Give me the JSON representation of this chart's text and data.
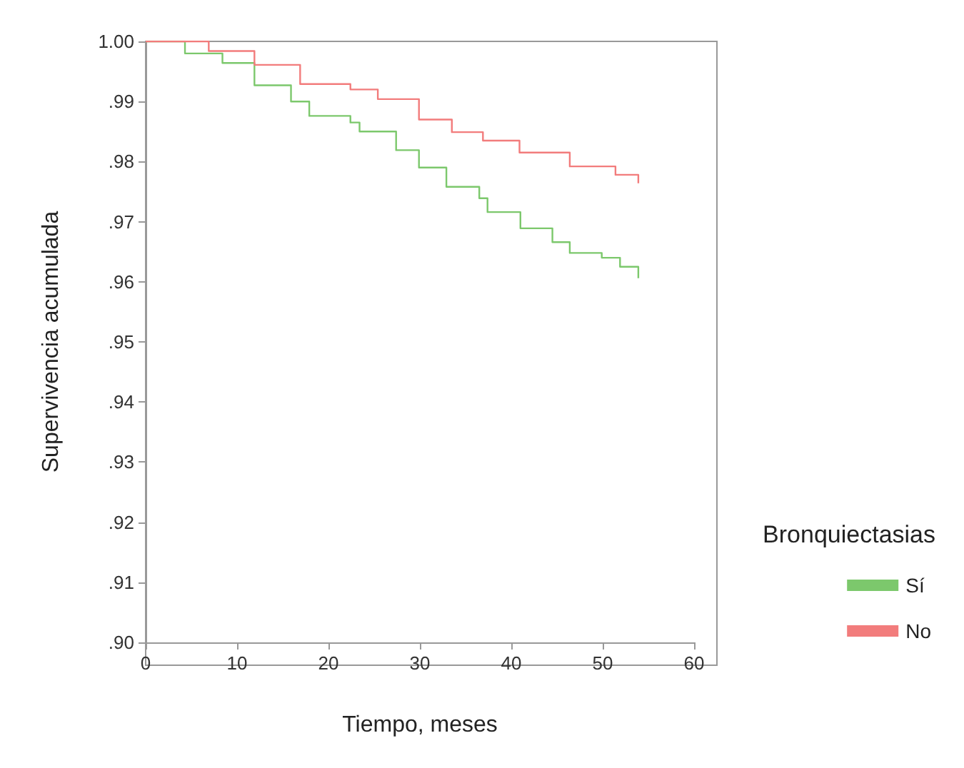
{
  "chart_data": {
    "type": "step",
    "xlabel": "Tiempo, meses",
    "ylabel": "Supervivencia acumulada",
    "legend_title": "Bronquiectasias",
    "legend": "right",
    "grid": false,
    "xlim": [
      0,
      60
    ],
    "xticks": [
      0,
      10,
      20,
      30,
      40,
      50,
      60
    ],
    "ylim": [
      0.9,
      1.0
    ],
    "yticks": [
      {
        "value": 0.9,
        "label": ".90"
      },
      {
        "value": 0.91,
        "label": ".91"
      },
      {
        "value": 0.92,
        "label": ".92"
      },
      {
        "value": 0.93,
        "label": ".93"
      },
      {
        "value": 0.94,
        "label": ".94"
      },
      {
        "value": 0.95,
        "label": ".95"
      },
      {
        "value": 0.96,
        "label": ".96"
      },
      {
        "value": 0.97,
        "label": ".97"
      },
      {
        "value": 0.98,
        "label": ".98"
      },
      {
        "value": 0.99,
        "label": ".99"
      },
      {
        "value": 1.0,
        "label": "1.00"
      }
    ],
    "series": [
      {
        "name": "Sí",
        "color": "#7cc86c",
        "x": [
          0,
          4.3,
          8.4,
          11.9,
          15.9,
          17.9,
          22.4,
          23.4,
          27.4,
          29.9,
          32.9,
          36.5,
          37.4,
          41.0,
          44.5,
          46.4,
          49.9,
          51.9,
          53.9
        ],
        "values": [
          1.0,
          0.998,
          0.9964,
          0.9927,
          0.99,
          0.9876,
          0.9865,
          0.985,
          0.9819,
          0.979,
          0.9758,
          0.9739,
          0.9716,
          0.9689,
          0.9666,
          0.9648,
          0.964,
          0.9625,
          0.9606
        ]
      },
      {
        "name": "No",
        "color": "#f27c7c",
        "x": [
          0,
          6.9,
          11.9,
          16.9,
          22.4,
          25.4,
          29.9,
          33.5,
          36.9,
          40.9,
          46.4,
          51.4,
          53.9
        ],
        "values": [
          1.0,
          0.9984,
          0.9961,
          0.9929,
          0.992,
          0.9904,
          0.987,
          0.9849,
          0.9835,
          0.9815,
          0.9792,
          0.9778,
          0.9764
        ]
      }
    ]
  }
}
